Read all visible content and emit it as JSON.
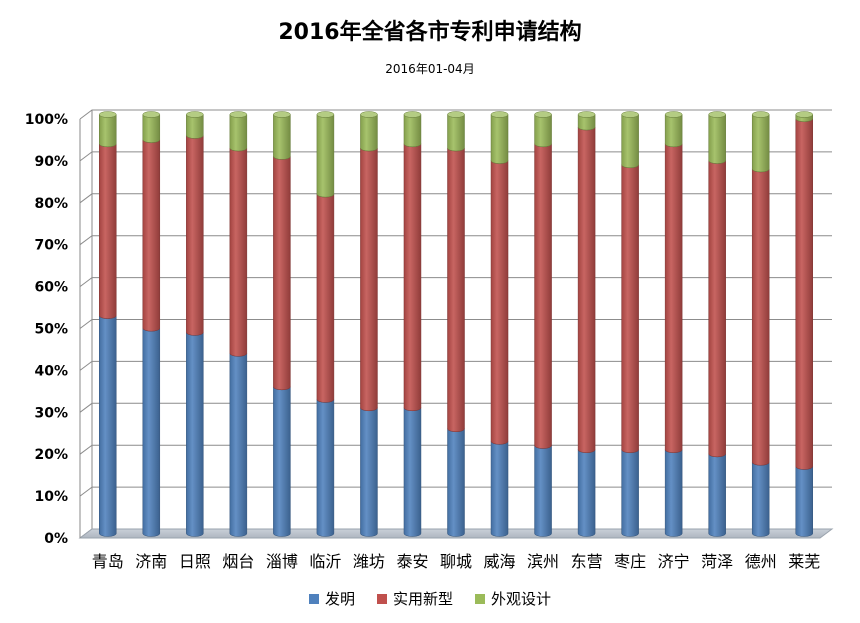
{
  "chart_data": {
    "type": "bar",
    "stacked": true,
    "percent_stacked": true,
    "title": "2016年全省各市专利申请结构",
    "subtitle": "2016年01-04月",
    "xlabel": "",
    "ylabel": "",
    "ylim": [
      0,
      100
    ],
    "y_ticks": [
      "0%",
      "10%",
      "20%",
      "30%",
      "40%",
      "50%",
      "60%",
      "70%",
      "80%",
      "90%",
      "100%"
    ],
    "grid": true,
    "legend_position": "bottom",
    "categories": [
      "青岛",
      "济南",
      "日照",
      "烟台",
      "淄博",
      "临沂",
      "潍坊",
      "泰安",
      "聊城",
      "威海",
      "滨州",
      "东营",
      "枣庄",
      "济宁",
      "菏泽",
      "德州",
      "莱芜"
    ],
    "series": [
      {
        "name": "发明",
        "color": "#4f81bd",
        "values": [
          52,
          49,
          48,
          43,
          35,
          32,
          30,
          30,
          25,
          22,
          21,
          20,
          20,
          20,
          19,
          17,
          16
        ]
      },
      {
        "name": "实用新型",
        "color": "#c0504d",
        "values": [
          41,
          45,
          47,
          49,
          55,
          49,
          62,
          63,
          67,
          67,
          72,
          77,
          68,
          73,
          70,
          70,
          83
        ]
      },
      {
        "name": "外观设计",
        "color": "#9bbb59",
        "values": [
          7,
          6,
          5,
          8,
          10,
          19,
          8,
          7,
          8,
          11,
          7,
          3,
          12,
          7,
          11,
          13,
          1
        ]
      }
    ]
  }
}
